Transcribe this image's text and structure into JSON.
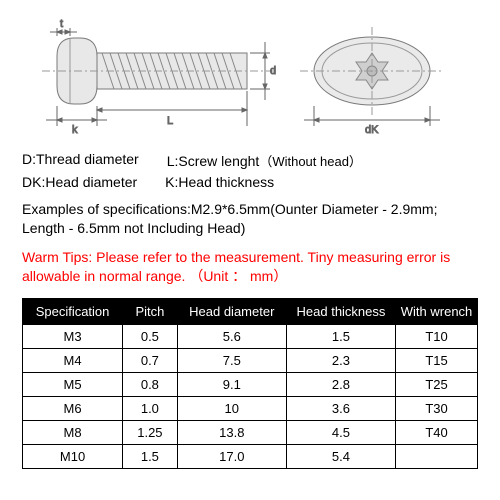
{
  "colors": {
    "header_bg": "#000000",
    "header_fg": "#ffffff",
    "border": "#000000",
    "text": "#000000",
    "warm": "#ff0000",
    "diagram_stroke": "#7a7a7a",
    "diagram_dim": "#666666"
  },
  "diagram": {
    "labels": {
      "t": "t",
      "d": "d",
      "k": "k",
      "L": "L",
      "dk": "dK"
    }
  },
  "legend": {
    "d": "D:Thread diameter",
    "l": "L:Screw lenght",
    "l_note": "（Without head）",
    "dk": "DK:Head diameter",
    "k": "K:Head thickness"
  },
  "examples": "Examples of specifications:M2.9*6.5mm(Ounter Diameter - 2.9mm; Length - 6.5mm not Including Head)",
  "warm_tips": "Warm Tips: Please refer to the measurement. Tiny measuring error is allowable in normal range.  （Unit ： mm）",
  "table": {
    "columns": [
      "Specification",
      "Pitch",
      "Head diameter",
      "Head thickness",
      "With wrench"
    ],
    "rows": [
      [
        "M3",
        "0.5",
        "5.6",
        "1.5",
        "T10"
      ],
      [
        "M4",
        "0.7",
        "7.5",
        "2.3",
        "T15"
      ],
      [
        "M5",
        "0.8",
        "9.1",
        "2.8",
        "T25"
      ],
      [
        "M6",
        "1.0",
        "10",
        "3.6",
        "T30"
      ],
      [
        "M8",
        "1.25",
        "13.8",
        "4.5",
        "T40"
      ],
      [
        "M10",
        "1.5",
        "17.0",
        "5.4",
        ""
      ]
    ]
  }
}
